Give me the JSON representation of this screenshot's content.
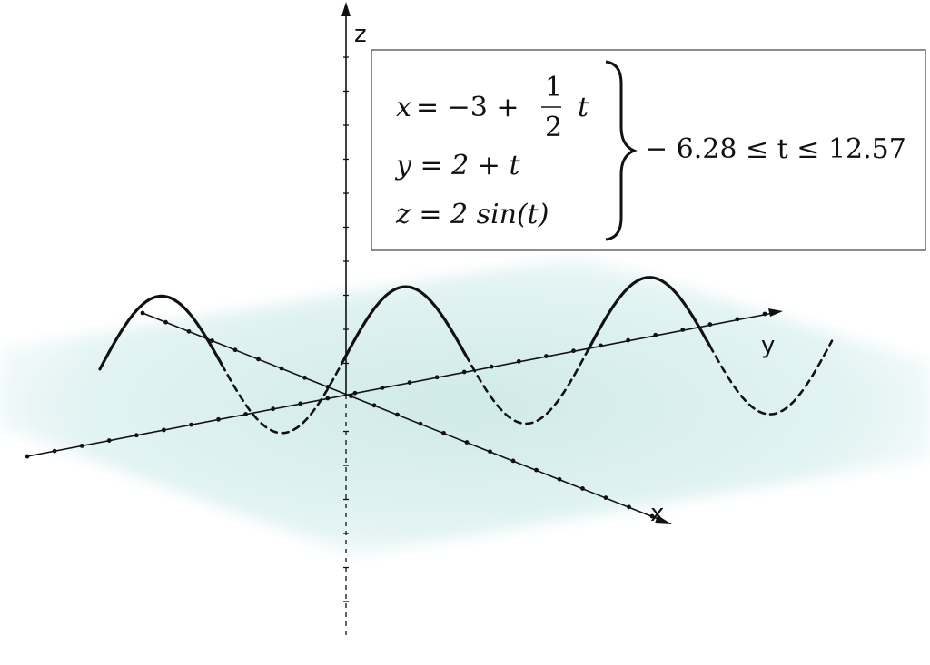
{
  "axes": {
    "x_label": "x",
    "y_label": "y",
    "z_label": "z"
  },
  "equations": {
    "x_lhs": "x",
    "x_rhs_const": "= −3 +",
    "x_frac_num": "1",
    "x_frac_den": "2",
    "x_rhs_var": "t",
    "y_eq": "y = 2 + t",
    "z_eq": "z = 2 sin(t)",
    "range": "− 6.28 ≤ t ≤ 12.57"
  },
  "colors": {
    "plane_fill": "#cde9e8",
    "curve": "#111111",
    "axes": "#111111",
    "box_border": "#666666"
  },
  "curve": {
    "t_min": -6.28,
    "t_max": 12.57
  }
}
